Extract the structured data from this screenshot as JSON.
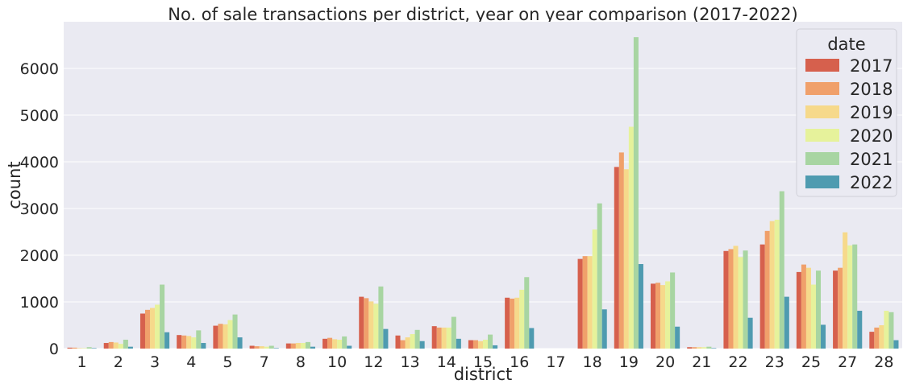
{
  "chart_data": {
    "type": "bar",
    "title": "No. of sale transactions per district, year on year comparison (2017-2022)",
    "xlabel": "district",
    "ylabel": "count",
    "ylim": [
      0,
      7000
    ],
    "yticks": [
      0,
      1000,
      2000,
      3000,
      4000,
      5000,
      6000
    ],
    "grid": true,
    "legend": {
      "title": "date",
      "placement": "top-right"
    },
    "categories": [
      "1",
      "2",
      "3",
      "4",
      "5",
      "7",
      "8",
      "10",
      "12",
      "13",
      "14",
      "15",
      "16",
      "17",
      "18",
      "19",
      "20",
      "21",
      "22",
      "23",
      "25",
      "27",
      "28"
    ],
    "series": [
      {
        "name": "2017",
        "color": "#d6604d",
        "values": [
          20,
          120,
          750,
          290,
          490,
          60,
          110,
          210,
          1110,
          280,
          480,
          180,
          1090,
          0,
          1920,
          3890,
          1390,
          30,
          2090,
          2230,
          1640,
          1670,
          360
        ]
      },
      {
        "name": "2018",
        "color": "#f0a06b",
        "values": [
          20,
          140,
          830,
          280,
          530,
          50,
          110,
          230,
          1080,
          180,
          450,
          180,
          1070,
          0,
          1980,
          4200,
          1410,
          30,
          2130,
          2520,
          1800,
          1730,
          450
        ]
      },
      {
        "name": "2019",
        "color": "#f6d98b",
        "values": [
          10,
          130,
          870,
          270,
          520,
          50,
          120,
          200,
          1010,
          240,
          450,
          160,
          1090,
          0,
          1980,
          3840,
          1360,
          30,
          2200,
          2730,
          1730,
          2490,
          500
        ]
      },
      {
        "name": "2020",
        "color": "#e6f29b",
        "values": [
          10,
          100,
          940,
          240,
          610,
          40,
          120,
          190,
          960,
          310,
          450,
          190,
          1260,
          0,
          2550,
          4750,
          1440,
          30,
          1960,
          2760,
          1370,
          2210,
          810
        ]
      },
      {
        "name": "2021",
        "color": "#a8d5a2",
        "values": [
          30,
          190,
          1370,
          390,
          730,
          60,
          140,
          260,
          1330,
          400,
          680,
          300,
          1530,
          0,
          3110,
          6670,
          1630,
          40,
          2100,
          3370,
          1670,
          2230,
          780
        ]
      },
      {
        "name": "2022",
        "color": "#4f9bb0",
        "values": [
          10,
          40,
          350,
          120,
          240,
          10,
          40,
          60,
          420,
          160,
          210,
          70,
          440,
          0,
          840,
          1810,
          470,
          10,
          660,
          1110,
          510,
          810,
          180
        ]
      }
    ]
  }
}
